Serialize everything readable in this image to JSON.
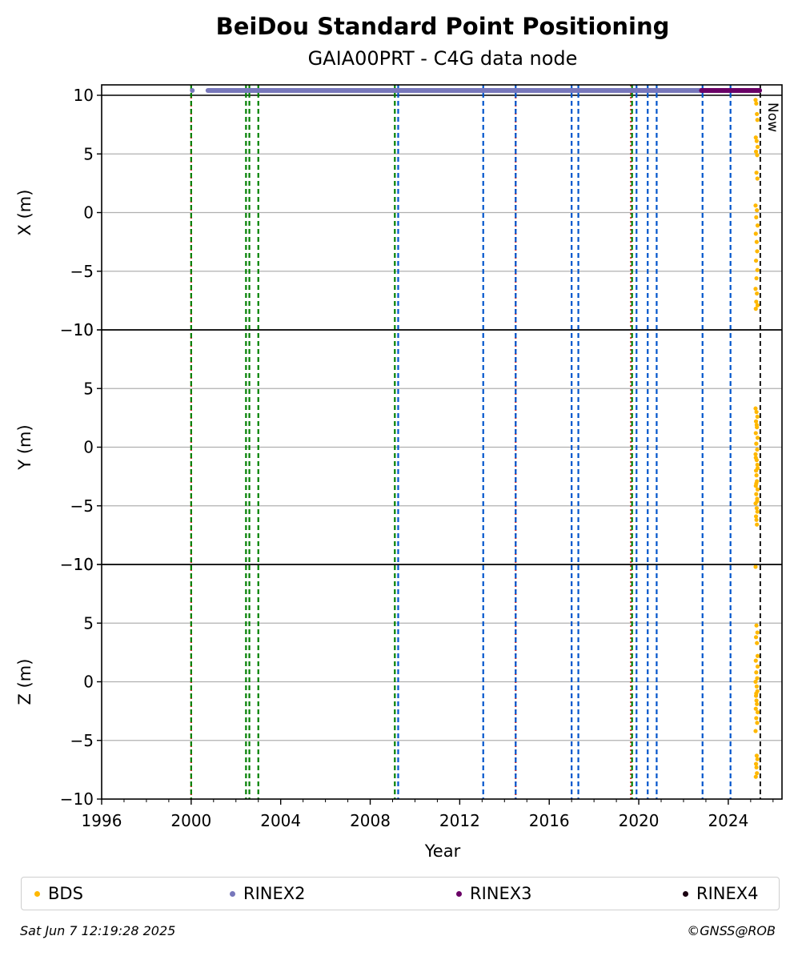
{
  "chart_data": {
    "type": "scatter",
    "title": "BeiDou Standard Point Positioning",
    "subtitle": "GAIA00PRT - C4G data node",
    "xlabel": "Year",
    "xlim": [
      1996.0,
      2026.4
    ],
    "xticks": [
      "1996",
      "2000",
      "2004",
      "2008",
      "2012",
      "2016",
      "2020",
      "2024"
    ],
    "now_label": "Now",
    "now_year": 2025.43,
    "panels": [
      {
        "ylabel": "X (m)",
        "ylim": [
          -10,
          10
        ],
        "yticks": [
          "−10",
          "−5",
          "0",
          "5",
          "10"
        ]
      },
      {
        "ylabel": "Y (m)",
        "ylim": [
          -10,
          10
        ],
        "yticks": [
          "−10",
          "−5",
          "0",
          "5",
          "10"
        ]
      },
      {
        "ylabel": "Z (m)",
        "ylim": [
          -10,
          10
        ],
        "yticks": [
          "−10",
          "−5",
          "0",
          "5",
          "10"
        ]
      }
    ],
    "event_lines": [
      {
        "year": 2000.0,
        "color": "#d62728",
        "style": "dotted"
      },
      {
        "year": 2000.0,
        "color": "#008000",
        "style": "dashed"
      },
      {
        "year": 2002.45,
        "color": "#008000",
        "style": "dashed"
      },
      {
        "year": 2002.6,
        "color": "#008000",
        "style": "dashed"
      },
      {
        "year": 2003.0,
        "color": "#008000",
        "style": "dashed"
      },
      {
        "year": 2009.1,
        "color": "#008000",
        "style": "dashed"
      },
      {
        "year": 2009.25,
        "color": "#0055cc",
        "style": "dashed"
      },
      {
        "year": 2013.05,
        "color": "#0055cc",
        "style": "dashed"
      },
      {
        "year": 2014.5,
        "color": "#d62728",
        "style": "dotted"
      },
      {
        "year": 2014.5,
        "color": "#0055cc",
        "style": "dashed"
      },
      {
        "year": 2017.0,
        "color": "#0055cc",
        "style": "dashed"
      },
      {
        "year": 2017.3,
        "color": "#0055cc",
        "style": "dashed"
      },
      {
        "year": 2019.65,
        "color": "#d62728",
        "style": "dotted"
      },
      {
        "year": 2019.7,
        "color": "#008000",
        "style": "dashed"
      },
      {
        "year": 2019.9,
        "color": "#0055cc",
        "style": "dashed"
      },
      {
        "year": 2020.4,
        "color": "#0055cc",
        "style": "dashed"
      },
      {
        "year": 2020.8,
        "color": "#0055cc",
        "style": "dashed"
      },
      {
        "year": 2022.85,
        "color": "#0055cc",
        "style": "dashed"
      },
      {
        "year": 2024.1,
        "color": "#0055cc",
        "style": "dashed"
      }
    ],
    "rinex_bars": [
      {
        "name": "RINEX2",
        "color": "#7777bb",
        "start": 2000.75,
        "end": 2025.4,
        "marker_year": 2000.05
      },
      {
        "name": "RINEX3",
        "color": "#6a0066",
        "start": 2022.8,
        "end": 2025.4
      }
    ],
    "series": [
      {
        "name": "BDS",
        "color": "#ffb800",
        "panel": "X",
        "x": [
          2025.22,
          2025.25,
          2025.28,
          2025.3,
          2025.23,
          2025.27,
          2025.31,
          2025.24,
          2025.29,
          2025.26,
          2025.3,
          2025.22,
          2025.28,
          2025.25,
          2025.31,
          2025.23,
          2025.27,
          2025.29,
          2025.24,
          2025.3,
          2025.26,
          2025.22,
          2025.28,
          2025.25,
          2025.31,
          2025.23
        ],
        "y": [
          9.6,
          9.3,
          8.4,
          7.9,
          6.4,
          6.1,
          5.6,
          5.2,
          4.9,
          3.4,
          2.9,
          0.6,
          0.2,
          -0.4,
          -1.1,
          -1.8,
          -2.5,
          -3.3,
          -4.1,
          -4.9,
          -5.6,
          -6.5,
          -6.9,
          -7.6,
          -7.9,
          -8.2
        ]
      },
      {
        "name": "BDS",
        "color": "#ffb800",
        "panel": "Y",
        "x": [
          2025.22,
          2025.26,
          2025.3,
          2025.24,
          2025.28,
          2025.23,
          2025.31,
          2025.25,
          2025.29,
          2025.22,
          2025.27,
          2025.3,
          2025.24,
          2025.26,
          2025.28,
          2025.23,
          2025.31,
          2025.25,
          2025.29,
          2025.22,
          2025.27,
          2025.3,
          2025.24,
          2025.26,
          2025.28,
          2025.23,
          2025.31,
          2025.25,
          2025.29,
          2025.27
        ],
        "y": [
          3.3,
          3.0,
          2.6,
          2.2,
          1.7,
          1.2,
          0.8,
          0.3,
          -0.2,
          -0.6,
          -1.1,
          -1.5,
          -2.0,
          -2.4,
          -2.9,
          -3.3,
          -3.6,
          -4.0,
          -4.4,
          -4.8,
          -5.2,
          -5.5,
          -5.9,
          -6.2,
          -6.6,
          -0.9,
          -1.8,
          -3.1,
          -4.6,
          1.9
        ]
      },
      {
        "name": "BDS",
        "color": "#ffb800",
        "panel": "Z",
        "x": [
          2025.22,
          2025.26,
          2025.3,
          2025.24,
          2025.28,
          2025.23,
          2025.31,
          2025.25,
          2025.29,
          2025.22,
          2025.27,
          2025.3,
          2025.24,
          2025.26,
          2025.28,
          2025.23,
          2025.31,
          2025.25,
          2025.29,
          2025.22,
          2025.27,
          2025.3,
          2025.24,
          2025.26,
          2025.28,
          2025.23,
          2025.31,
          2025.25
        ],
        "y": [
          9.8,
          4.8,
          4.2,
          3.8,
          3.3,
          1.8,
          1.3,
          0.8,
          0.3,
          0.0,
          -0.4,
          -0.8,
          -1.2,
          -1.6,
          -1.9,
          -2.3,
          -2.6,
          -3.1,
          -3.5,
          -4.2,
          -6.3,
          -6.6,
          -7.0,
          -7.3,
          -7.8,
          -8.1,
          2.2,
          -1.0
        ]
      }
    ],
    "legend": [
      {
        "name": "BDS",
        "color": "#ffb800"
      },
      {
        "name": "RINEX2",
        "color": "#7777bb"
      },
      {
        "name": "RINEX3",
        "color": "#6a0066"
      },
      {
        "name": "RINEX4",
        "color": "#1a0011"
      }
    ],
    "grid": "horizontal",
    "legend_position": "bottom"
  },
  "footer": {
    "timestamp": "Sat Jun  7 12:19:28 2025",
    "copyright": "©GNSS@ROB"
  }
}
